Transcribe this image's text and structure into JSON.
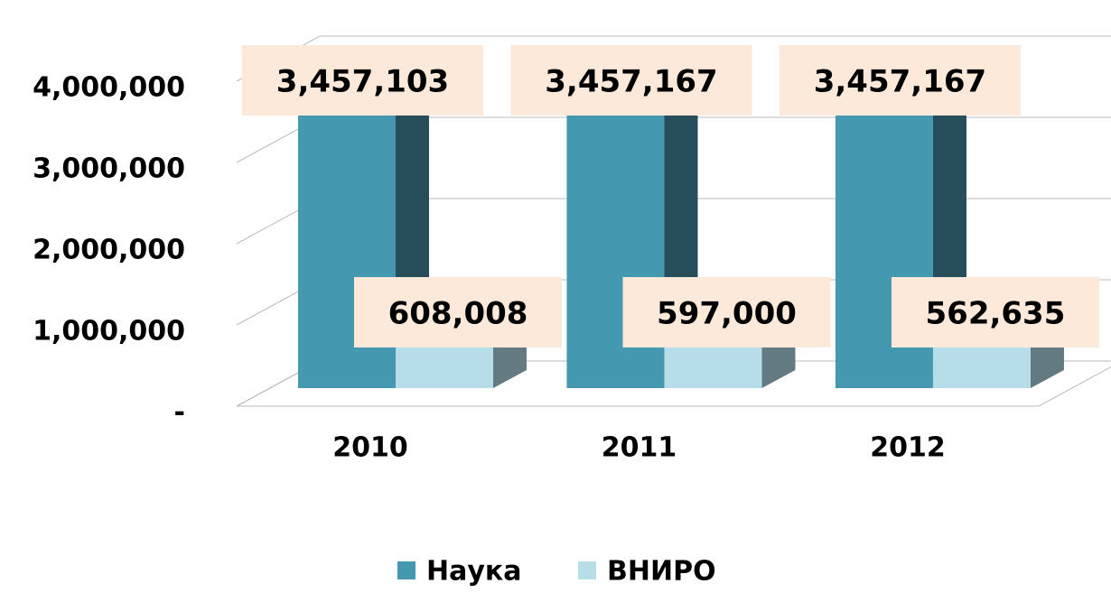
{
  "chart_data": {
    "type": "bar3d",
    "categories": [
      "2010",
      "2011",
      "2012"
    ],
    "series": [
      {
        "name": "Наука",
        "color": "#4498b0",
        "values": [
          3457103,
          3457167,
          3457167
        ],
        "value_labels": [
          "3,457,103",
          "3,457,167",
          "3,457,167"
        ]
      },
      {
        "name": "ВНИРО",
        "color": "#b7dde8",
        "values": [
          608008,
          597000,
          562635
        ],
        "value_labels": [
          "608,008",
          "597,000",
          "562,635"
        ]
      }
    ],
    "ylim": [
      0,
      4000000
    ],
    "yticks": [
      {
        "value": 0,
        "label": "-"
      },
      {
        "value": 1000000,
        "label": "1,000,000"
      },
      {
        "value": 2000000,
        "label": "2,000,000"
      },
      {
        "value": 3000000,
        "label": "3,000,000"
      },
      {
        "value": 4000000,
        "label": "4,000,000"
      }
    ],
    "grid": true,
    "legend": "bottom"
  }
}
